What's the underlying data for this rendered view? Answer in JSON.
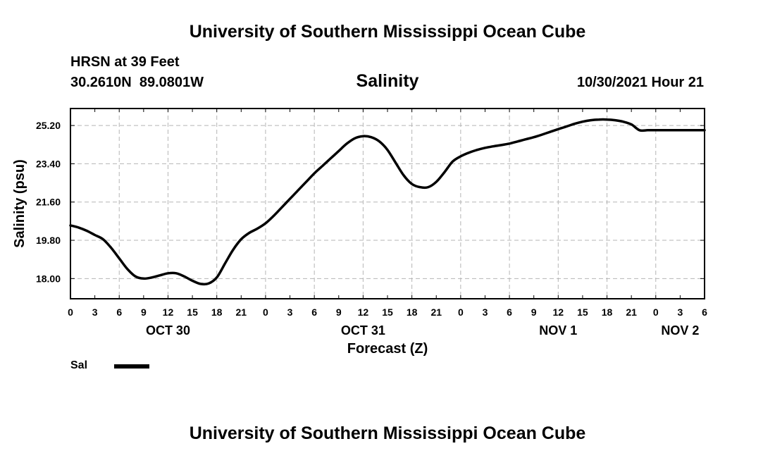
{
  "header": {
    "title": "University of Southern Mississippi Ocean Cube",
    "station_name": "HRSN at 39 Feet",
    "coordinates": "30.2610N  89.0801W",
    "chart_title": "Salinity",
    "timestamp": "10/30/2021 Hour 21"
  },
  "footer": {
    "title": "University of Southern Mississippi Ocean Cube"
  },
  "legend": {
    "label": "Sal"
  },
  "chart_data": {
    "type": "line",
    "title": "Salinity",
    "xlabel": "Forecast (Z)",
    "ylabel": "Salinity (psu)",
    "xlim": [
      0,
      78
    ],
    "ylim": [
      17.05,
      26.0
    ],
    "grid": true,
    "y_ticks": [
      18.0,
      19.8,
      21.6,
      23.4,
      25.2
    ],
    "y_tick_labels": [
      "18.00",
      "19.80",
      "21.60",
      "23.40",
      "25.20"
    ],
    "x_tick_labels": [
      "0",
      "3",
      "6",
      "9",
      "12",
      "15",
      "18",
      "21",
      "0",
      "3",
      "6",
      "9",
      "12",
      "15",
      "18",
      "21",
      "0",
      "3",
      "6",
      "9",
      "12",
      "15",
      "18",
      "21",
      "0",
      "3",
      "6"
    ],
    "day_labels": [
      {
        "label": "OCT 30",
        "x": 12
      },
      {
        "label": "OCT 31",
        "x": 36
      },
      {
        "label": "NOV 1",
        "x": 60
      },
      {
        "label": "NOV 2",
        "x": 75
      }
    ],
    "series": [
      {
        "name": "Sal",
        "color": "#000000",
        "x": [
          0,
          1,
          2,
          3,
          4,
          5,
          6,
          7,
          8,
          9,
          10,
          11,
          12,
          13,
          14,
          15,
          16,
          17,
          18,
          19,
          20,
          21,
          22,
          23,
          24,
          25,
          26,
          27,
          28,
          29,
          30,
          31,
          32,
          33,
          34,
          35,
          36,
          37,
          38,
          39,
          40,
          41,
          42,
          43,
          44,
          45,
          46,
          47,
          48,
          49,
          50,
          51,
          52,
          53,
          54,
          55,
          56,
          57,
          58,
          59,
          60,
          61,
          62,
          63,
          64,
          65,
          66,
          67,
          68,
          69,
          70,
          71,
          72,
          73,
          74,
          75,
          76,
          77,
          78
        ],
        "values": [
          20.5,
          20.4,
          20.25,
          20.05,
          19.85,
          19.45,
          18.95,
          18.45,
          18.1,
          18.0,
          18.05,
          18.15,
          18.25,
          18.25,
          18.1,
          17.9,
          17.75,
          17.77,
          18.05,
          18.7,
          19.35,
          19.85,
          20.15,
          20.35,
          20.6,
          20.95,
          21.35,
          21.75,
          22.15,
          22.55,
          22.95,
          23.3,
          23.65,
          24.0,
          24.35,
          24.6,
          24.7,
          24.65,
          24.45,
          24.05,
          23.45,
          22.85,
          22.45,
          22.3,
          22.3,
          22.55,
          23.0,
          23.5,
          23.75,
          23.92,
          24.05,
          24.15,
          24.22,
          24.28,
          24.35,
          24.45,
          24.55,
          24.65,
          24.77,
          24.9,
          25.03,
          25.15,
          25.28,
          25.38,
          25.45,
          25.48,
          25.48,
          25.45,
          25.38,
          25.25,
          24.98,
          24.98,
          24.98,
          24.98,
          24.98,
          24.98,
          24.98,
          24.98,
          24.98
        ]
      }
    ]
  }
}
